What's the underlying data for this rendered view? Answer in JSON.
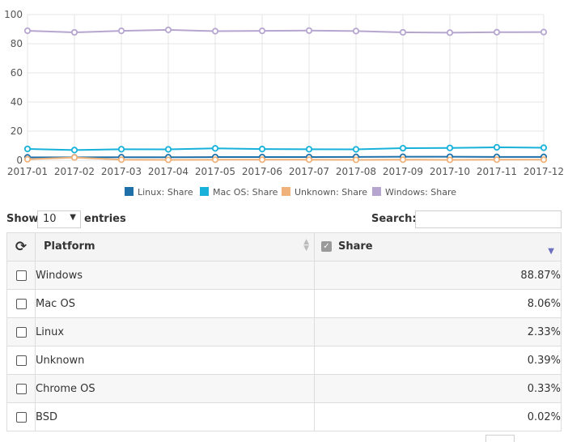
{
  "chart_data": {
    "type": "line",
    "x": [
      "2017-01",
      "2017-02",
      "2017-03",
      "2017-04",
      "2017-05",
      "2017-06",
      "2017-07",
      "2017-08",
      "2017-09",
      "2017-10",
      "2017-11",
      "2017-12"
    ],
    "ylim": [
      0,
      100
    ],
    "yticks": [
      "0",
      "20",
      "40",
      "60",
      "80",
      "100"
    ],
    "grid": true,
    "legend_position": "bottom",
    "series": [
      {
        "name": "Linux: Share",
        "color": "#1f6fa8",
        "values": [
          2.0,
          2.0,
          2.1,
          2.1,
          2.2,
          2.2,
          2.2,
          2.3,
          2.4,
          2.4,
          2.3,
          2.3
        ]
      },
      {
        "name": "Mac OS: Share",
        "color": "#17b1d9",
        "values": [
          7.8,
          7.0,
          7.6,
          7.5,
          8.2,
          7.7,
          7.6,
          7.5,
          8.3,
          8.5,
          8.9,
          8.6
        ]
      },
      {
        "name": "Unknown: Share",
        "color": "#f0b27a",
        "values": [
          0.7,
          1.9,
          0.4,
          0.3,
          0.4,
          0.4,
          0.4,
          0.3,
          0.4,
          0.3,
          0.4,
          0.4
        ]
      },
      {
        "name": "Windows: Share",
        "color": "#b6a6cf",
        "values": [
          88.9,
          87.8,
          88.8,
          89.5,
          88.6,
          88.8,
          89.0,
          88.7,
          87.8,
          87.6,
          87.9,
          88.0
        ]
      }
    ]
  },
  "controls": {
    "show_label": "Show",
    "length_value": "10",
    "entries_label": "entries",
    "search_label": "Search:",
    "search_value": ""
  },
  "table": {
    "columns": {
      "platform": "Platform",
      "share": "Share"
    },
    "rows": [
      {
        "platform": "Windows",
        "share": "88.87%"
      },
      {
        "platform": "Mac OS",
        "share": "8.06%"
      },
      {
        "platform": "Linux",
        "share": "2.33%"
      },
      {
        "platform": "Unknown",
        "share": "0.39%"
      },
      {
        "platform": "Chrome OS",
        "share": "0.33%"
      },
      {
        "platform": "BSD",
        "share": "0.02%"
      }
    ]
  }
}
